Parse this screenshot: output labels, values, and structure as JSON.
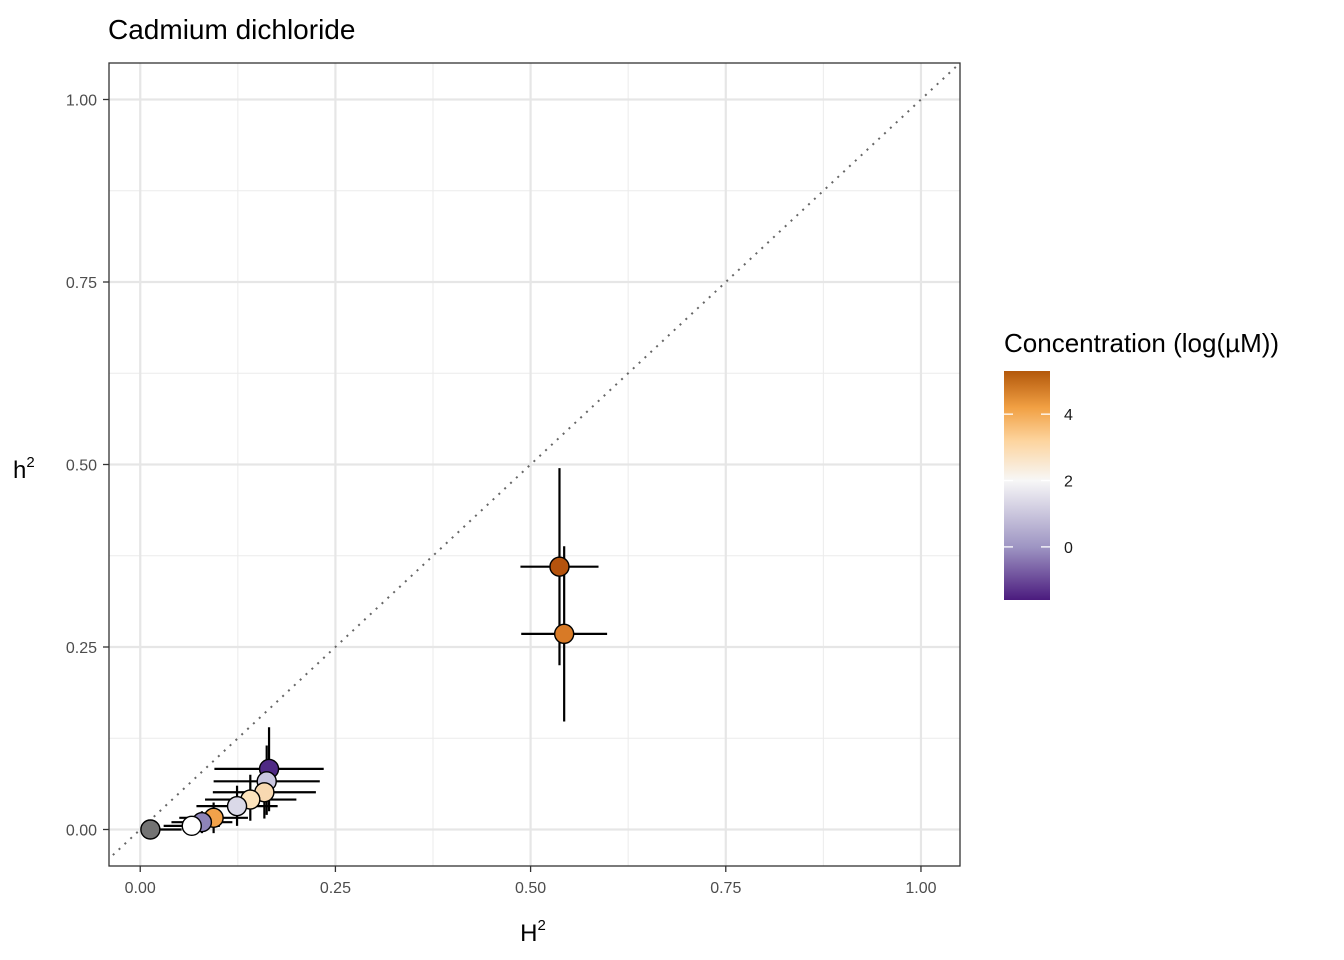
{
  "chart_data": {
    "type": "scatter",
    "title": "Cadmium dichloride",
    "xlabel": "H",
    "xlabel_sup": "2",
    "ylabel": "h",
    "ylabel_sup": "2",
    "xlim": [
      -0.04,
      1.05
    ],
    "ylim": [
      -0.05,
      1.05
    ],
    "x_ticks": [
      0.0,
      0.25,
      0.5,
      0.75,
      1.0
    ],
    "x_tick_labels": [
      "0.00",
      "0.25",
      "0.50",
      "0.75",
      "1.00"
    ],
    "y_ticks": [
      0.0,
      0.25,
      0.5,
      0.75,
      1.0
    ],
    "y_tick_labels": [
      "0.00",
      "0.25",
      "0.50",
      "0.75",
      "1.00"
    ],
    "reference_line": "y = x (dotted)",
    "grid": true,
    "legend": {
      "title": "Concentration (log(µM))",
      "position": "right",
      "range": [
        -1.6,
        5.3
      ],
      "ticks": [
        0,
        2,
        4
      ],
      "tick_labels": [
        "0",
        "2",
        "4"
      ],
      "gradient_stops": [
        {
          "value": -1.6,
          "color": "#4b1b7e"
        },
        {
          "value": 0.0,
          "color": "#9e95c3"
        },
        {
          "value": 2.0,
          "color": "#f7f7f7"
        },
        {
          "value": 3.2,
          "color": "#fdd49e"
        },
        {
          "value": 4.2,
          "color": "#f1a043"
        },
        {
          "value": 5.3,
          "color": "#b3580b"
        }
      ]
    },
    "points": [
      {
        "H2": 0.537,
        "h2": 0.36,
        "H2_lo": 0.487,
        "H2_hi": 0.587,
        "h2_lo": 0.225,
        "h2_hi": 0.495,
        "color": "#b5530d"
      },
      {
        "H2": 0.543,
        "h2": 0.268,
        "H2_lo": 0.488,
        "H2_hi": 0.598,
        "h2_lo": 0.148,
        "h2_hi": 0.388,
        "color": "#d87a26"
      },
      {
        "H2": 0.165,
        "h2": 0.083,
        "H2_lo": 0.095,
        "H2_hi": 0.235,
        "h2_lo": 0.025,
        "h2_hi": 0.14,
        "color": "#4f2a85"
      },
      {
        "H2": 0.162,
        "h2": 0.066,
        "H2_lo": 0.094,
        "H2_hi": 0.23,
        "h2_lo": 0.02,
        "h2_hi": 0.115,
        "color": "#c9c6df"
      },
      {
        "H2": 0.159,
        "h2": 0.051,
        "H2_lo": 0.093,
        "H2_hi": 0.225,
        "h2_lo": 0.015,
        "h2_hi": 0.09,
        "color": "#f8d9b1"
      },
      {
        "H2": 0.141,
        "h2": 0.041,
        "H2_lo": 0.083,
        "H2_hi": 0.2,
        "h2_lo": 0.012,
        "h2_hi": 0.075,
        "color": "#fce3bd"
      },
      {
        "H2": 0.124,
        "h2": 0.032,
        "H2_lo": 0.072,
        "H2_hi": 0.176,
        "h2_lo": 0.005,
        "h2_hi": 0.06,
        "color": "#dad9e8"
      },
      {
        "H2": 0.094,
        "h2": 0.016,
        "H2_lo": 0.05,
        "H2_hi": 0.138,
        "h2_lo": -0.005,
        "h2_hi": 0.037,
        "color": "#f2a24a"
      },
      {
        "H2": 0.079,
        "h2": 0.01,
        "H2_lo": 0.04,
        "H2_hi": 0.118,
        "h2_lo": -0.005,
        "h2_hi": 0.025,
        "color": "#8e84b8"
      },
      {
        "H2": 0.066,
        "h2": 0.005,
        "H2_lo": 0.03,
        "H2_hi": 0.102,
        "h2_lo": -0.003,
        "h2_hi": 0.013,
        "color": "#ffffff"
      },
      {
        "H2": 0.013,
        "h2": 0.0,
        "H2_lo": 0.003,
        "H2_hi": 0.053,
        "h2_lo": -0.001,
        "h2_hi": 0.001,
        "color": "#737373"
      }
    ]
  }
}
